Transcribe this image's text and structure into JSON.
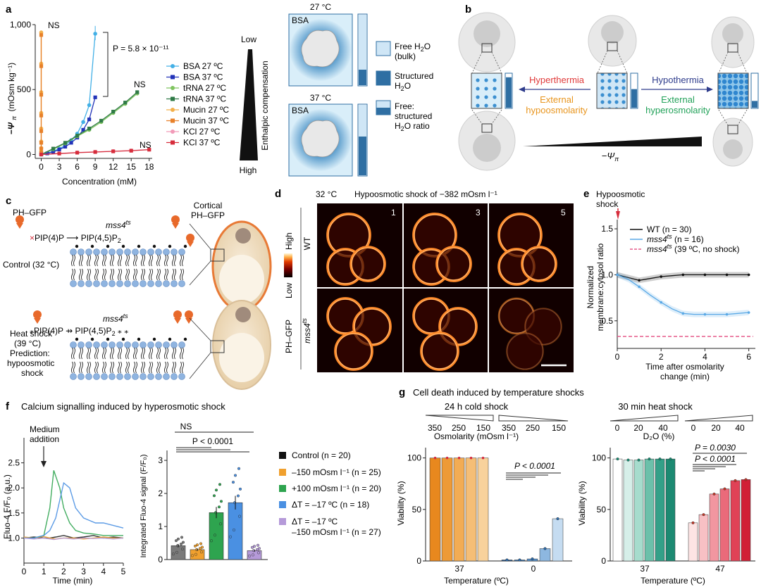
{
  "panel_labels": {
    "a": "a",
    "b": "b",
    "c": "c",
    "d": "d",
    "e": "e",
    "f": "f",
    "g": "g"
  },
  "colors": {
    "bsa27": "#43b0e6",
    "bsa37": "#2233b8",
    "trna27": "#7fc45f",
    "trna37": "#2f7a46",
    "mucin27": "#f3b04a",
    "mucin37": "#e8812a",
    "kcl27": "#f29ab8",
    "kcl37": "#d62d3c",
    "free_water": "#cfe6f6",
    "structured_water": "#2f6fa3",
    "control": "#1a1a1a",
    "m150": "#f0a02e",
    "p100": "#2ea44f",
    "dt17": "#4a90e2",
    "dt17m150": "#b59ad9"
  },
  "panel_a": {
    "chart_data": {
      "type": "scatter",
      "xlabel": "Concentration (mM)",
      "ylabel_main": "−Ψ",
      "ylabel_sub": "π",
      "ylabel_units": "(mOsm kg⁻¹)",
      "xlim": [
        -1,
        18.5
      ],
      "ylim": [
        -30,
        1000
      ],
      "xticks": [
        "0",
        "3",
        "6",
        "9",
        "12",
        "15",
        "18"
      ],
      "yticks": [
        "0",
        "500",
        "1,000"
      ],
      "annotations": [
        "NS",
        "NS",
        "NS"
      ],
      "pvalue": "P = 5.8 × 10⁻¹¹",
      "series": [
        {
          "name": "BSA 27 ºC",
          "x": [
            0,
            1,
            2,
            3,
            4,
            5,
            6,
            7,
            8,
            9
          ],
          "y": [
            0,
            10,
            25,
            45,
            70,
            110,
            160,
            250,
            380,
            930
          ]
        },
        {
          "name": "BSA 37 ºC",
          "x": [
            0,
            1,
            2,
            3,
            4,
            5,
            6,
            7,
            8,
            9
          ],
          "y": [
            0,
            8,
            20,
            38,
            60,
            90,
            130,
            190,
            270,
            440
          ]
        },
        {
          "name": "tRNA 27 ºC",
          "x": [
            0,
            2,
            4,
            6,
            8,
            10,
            12,
            14,
            16
          ],
          "y": [
            0,
            40,
            85,
            140,
            190,
            250,
            320,
            390,
            470
          ]
        },
        {
          "name": "tRNA 37 ºC",
          "x": [
            0,
            2,
            4,
            6,
            8,
            10,
            12,
            14,
            16
          ],
          "y": [
            0,
            45,
            90,
            145,
            200,
            260,
            330,
            400,
            480
          ]
        },
        {
          "name": "Mucin 27 ºC",
          "x": [
            0,
            0,
            0,
            0,
            0,
            0,
            0,
            0
          ],
          "y": [
            20,
            50,
            100,
            200,
            320,
            480,
            700,
            940
          ]
        },
        {
          "name": "Mucin 37 ºC",
          "x": [
            0,
            0,
            0,
            0,
            0,
            0,
            0,
            0
          ],
          "y": [
            15,
            45,
            90,
            180,
            300,
            460,
            680,
            920
          ]
        },
        {
          "name": "KCl 27 ºC",
          "x": [
            0,
            3,
            6,
            9,
            12,
            15,
            18
          ],
          "y": [
            0,
            8,
            15,
            20,
            25,
            30,
            38
          ]
        },
        {
          "name": "KCl 37 ºC",
          "x": [
            0,
            3,
            6,
            9,
            12,
            15,
            18
          ],
          "y": [
            0,
            7,
            14,
            19,
            24,
            29,
            37
          ]
        }
      ]
    },
    "enthalpic": {
      "low": "Low",
      "high": "High",
      "label": "Enthalpic compensation"
    },
    "temp1": "27 °C",
    "temp2": "37 °C",
    "bsa": "BSA",
    "legend2": {
      "free_line1": "Free H",
      "free_line2": "2",
      "free_line3": "O",
      "free_line4": "(bulk)",
      "struct_line1": "Structured",
      "struct_line2": "H",
      "struct_line3": "2",
      "struct_line4": "O",
      "ratio_line1": "Free:",
      "ratio_line2": "structured",
      "ratio_line3": "H",
      "ratio_line4": "2",
      "ratio_line5": "O ratio"
    },
    "bar_ratios": {
      "t27_free": 0.78,
      "t37_free": 0.45
    }
  },
  "panel_b": {
    "hyperthermia": "Hyperthermia",
    "hypothermia": "Hypothermia",
    "ext_hypo1": "External",
    "ext_hypo2": "hypoosmolarity",
    "ext_hyper1": "External",
    "ext_hyper2": "hyperosmolarity",
    "psi": "−Ψ",
    "psi_sub": "π",
    "bar_ratios": {
      "left": 0.9,
      "center": 0.55,
      "right": 0.2
    }
  },
  "panel_c": {
    "ph_gfp": "PH–GFP",
    "gene": "mss4",
    "gene_sup": "ts",
    "pip": "PIP(4)P",
    "pip2": "PIP(4,5)P",
    "pip2_sub": "2",
    "control": "Control (32 °C)",
    "heat1": "Heat shock",
    "heat2": "(39 °C)",
    "heat3": "Prediction:",
    "heat4": "hypoosmotic",
    "heat5": "shock",
    "cortical1": "Cortical",
    "cortical2": "PH–GFP"
  },
  "panel_d": {
    "temp": "32 °C",
    "title": "Hypoosmotic shock of −382 mOsm l⁻¹",
    "frames": [
      "1",
      "3",
      "5"
    ],
    "row1": "WT",
    "row2": "mss4",
    "row2_sup": "ts",
    "left": "PH–GFP",
    "high": "High",
    "low": "Low"
  },
  "panel_e": {
    "title1": "Hypoosmotic",
    "title2": "shock",
    "ylabel1": "Normalized",
    "ylabel2": "membrane:cytosol ratio",
    "xlabel1": "Time after osmolarity",
    "xlabel2": "change (min)",
    "chart_data": {
      "type": "line",
      "xlim": [
        0,
        6.3
      ],
      "ylim": [
        0.2,
        1.6
      ],
      "xticks": [
        "0",
        "2",
        "4",
        "6"
      ],
      "yticks": [
        "0.5",
        "1.0",
        "1.5"
      ],
      "series": [
        {
          "name": "WT",
          "n": "(n = 30)",
          "x": [
            0,
            0.5,
            1,
            1.5,
            2,
            2.5,
            3,
            3.5,
            4,
            4.5,
            5,
            5.5,
            6
          ],
          "y": [
            1.0,
            0.97,
            0.94,
            0.96,
            0.98,
            0.99,
            1.0,
            1.0,
            1.0,
            1.0,
            1.0,
            1.0,
            1.0
          ]
        },
        {
          "name": "mss4",
          "sup": "ts",
          "n": "(n = 16)",
          "x": [
            0,
            0.5,
            1,
            1.5,
            2,
            2.5,
            3,
            3.5,
            4,
            4.5,
            5,
            5.5,
            6
          ],
          "y": [
            1.0,
            0.95,
            0.87,
            0.78,
            0.7,
            0.63,
            0.58,
            0.57,
            0.57,
            0.57,
            0.57,
            0.58,
            0.59
          ]
        },
        {
          "name": "mss4",
          "sup": "ts",
          "n": "(39 ºC, no shock)",
          "x": [
            0,
            6.2
          ],
          "y": [
            0.33,
            0.33
          ]
        }
      ]
    }
  },
  "panel_f": {
    "title": "Calcium signalling induced by hyperosmotic shock",
    "medium1": "Medium",
    "medium2": "addition",
    "ylabel": "Fluo-4 F/F₀ (a.u.)",
    "xlabel": "Time (min)",
    "ylabel2": "Integrated Fluo-4 signal (F/F₀)",
    "ns": "NS",
    "pval": "P < 0.0001",
    "chart_traces": {
      "type": "line",
      "xlim": [
        0,
        5
      ],
      "ylim": [
        0.5,
        3
      ],
      "xticks": [
        "0",
        "1",
        "2",
        "3",
        "4",
        "5"
      ],
      "yticks": [
        "1.0",
        "1.5",
        "2.0",
        "2.5"
      ],
      "series": [
        {
          "name": "Control",
          "x": [
            0,
            0.5,
            1,
            1.3,
            1.6,
            2,
            2.5,
            3,
            3.5,
            4,
            4.5,
            5
          ],
          "y": [
            1.0,
            1.02,
            1.0,
            1.0,
            1.02,
            1.05,
            1.0,
            1.02,
            1.05,
            1.0,
            1.02,
            1.0
          ]
        },
        {
          "name": "−150",
          "x": [
            0,
            0.5,
            1,
            1.3,
            1.6,
            2,
            2.5,
            3,
            3.5,
            4,
            4.5,
            5
          ],
          "y": [
            1.02,
            1.0,
            1.03,
            1.0,
            0.98,
            1.0,
            1.0,
            0.98,
            1.0,
            1.02,
            1.0,
            1.0
          ]
        },
        {
          "name": "+100",
          "x": [
            0,
            0.5,
            1,
            1.3,
            1.5,
            1.8,
            2,
            2.3,
            2.6,
            3,
            3.5,
            4,
            4.5,
            5
          ],
          "y": [
            1.0,
            1.0,
            1.05,
            1.6,
            2.35,
            2.0,
            1.6,
            1.3,
            1.15,
            1.1,
            1.08,
            1.05,
            1.05,
            1.05
          ]
        },
        {
          "name": "ΔT",
          "x": [
            0,
            0.5,
            1,
            1.3,
            1.6,
            2,
            2.3,
            2.6,
            3,
            3.3,
            3.6,
            4,
            4.5,
            5
          ],
          "y": [
            1.0,
            1.0,
            1.05,
            1.15,
            1.4,
            2.1,
            2.0,
            1.6,
            1.4,
            1.35,
            1.3,
            1.3,
            1.25,
            1.2
          ]
        },
        {
          "name": "ΔT −150",
          "x": [
            0,
            0.5,
            1,
            1.5,
            2,
            2.5,
            3,
            3.5,
            4,
            4.5,
            5
          ],
          "y": [
            1.0,
            0.98,
            1.0,
            0.97,
            1.0,
            0.98,
            1.0,
            0.99,
            1.0,
            0.98,
            1.0
          ]
        }
      ]
    },
    "chart_bars": {
      "type": "bar",
      "ylim": [
        0,
        3.3
      ],
      "yticks": [
        "0",
        "1",
        "2",
        "3"
      ],
      "values": [
        0.42,
        0.3,
        1.42,
        1.72,
        0.27
      ]
    },
    "legend": [
      {
        "label": "Control",
        "n": "(n = 20)"
      },
      {
        "label": "–150 mOsm l⁻¹",
        "n": "(n = 25)"
      },
      {
        "label": "+100 mOsm l⁻¹",
        "n": "(n = 20)"
      },
      {
        "label": "ΔT = –17 ºC",
        "n": "(n = 18)"
      },
      {
        "label": "ΔT = –17 ºC",
        "n": ""
      }
    ],
    "legend_last2": "–150 mOsm l⁻¹ (n = 27)"
  },
  "panel_g": {
    "title": "Cell death induced by temperature shocks",
    "cold": "24 h cold shock",
    "heat": "30 min heat shock",
    "osm_label": "Osmolarity (mOsm l⁻¹)",
    "osm_ticks": [
      "350",
      "250",
      "150",
      "350",
      "250",
      "150"
    ],
    "d2o_label": "D₂O (%)",
    "d2o_ticks": [
      "0",
      "20",
      "40",
      "0",
      "20",
      "40"
    ],
    "ylabel": "Viability (%)",
    "xlabel": "Temperature (ºC)",
    "p1": "P < 0.0001",
    "p2": "P = 0.0030",
    "p3": "P < 0.0001",
    "chart_data": [
      {
        "type": "bar",
        "categories": [
          "37",
          "0"
        ],
        "yticks": [
          "0",
          "50",
          "100"
        ],
        "ylim": [
          0,
          110
        ],
        "values_37": [
          100,
          100,
          100,
          100,
          100
        ],
        "values_0": [
          1,
          1,
          2,
          12,
          41
        ]
      },
      {
        "type": "bar",
        "categories": [
          "37",
          "47"
        ],
        "yticks": [
          "0",
          "50",
          "100"
        ],
        "ylim": [
          0,
          110
        ],
        "values_37": [
          99,
          98,
          98,
          99,
          99,
          99
        ],
        "values_47": [
          37,
          45,
          65,
          70,
          78,
          79
        ]
      }
    ]
  }
}
